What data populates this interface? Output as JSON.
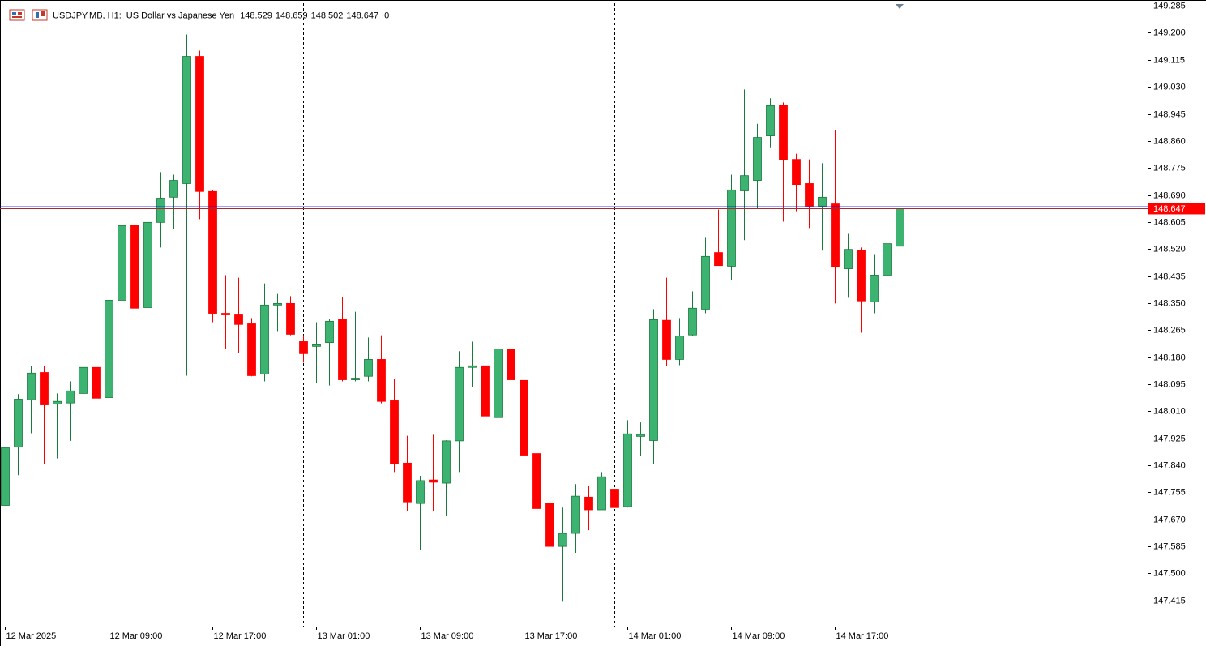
{
  "chart_data": {
    "type": "candlestick",
    "symbol": "USDJPY.MB, H1:",
    "description": "US Dollar vs Japanese Yen",
    "spread": 0,
    "categories": [
      "12 Mar 2025",
      null,
      null,
      null,
      null,
      null,
      null,
      null,
      "12 Mar 09:00",
      null,
      null,
      null,
      null,
      null,
      null,
      null,
      "12 Mar 17:00",
      null,
      null,
      null,
      null,
      null,
      null,
      null,
      "13 Mar 01:00",
      null,
      null,
      null,
      null,
      null,
      null,
      null,
      "13 Mar 09:00",
      null,
      null,
      null,
      null,
      null,
      null,
      null,
      "13 Mar 17:00",
      null,
      null,
      null,
      null,
      null,
      null,
      null,
      "14 Mar 01:00",
      null,
      null,
      null,
      null,
      null,
      null,
      null,
      "14 Mar 09:00",
      null,
      null,
      null,
      null,
      null,
      null,
      null,
      "14 Mar 17:00",
      null,
      null,
      null,
      null,
      null
    ],
    "open": [
      147.714,
      147.898,
      148.046,
      148.132,
      148.033,
      148.036,
      148.066,
      148.148,
      148.053,
      148.359,
      148.594,
      148.336,
      148.604,
      148.683,
      148.726,
      149.126,
      148.701,
      148.318,
      148.313,
      148.285,
      148.127,
      148.344,
      148.349,
      148.229,
      148.214,
      148.226,
      148.298,
      148.109,
      148.12,
      148.173,
      148.043,
      147.847,
      147.72,
      147.794,
      147.784,
      147.917,
      148.148,
      148.153,
      147.99,
      148.206,
      148.107,
      147.877,
      147.72,
      147.585,
      147.626,
      147.74,
      147.7,
      147.765,
      147.71,
      147.931,
      147.918,
      148.296,
      148.173,
      148.25,
      148.331,
      148.509,
      148.466,
      148.703,
      148.736,
      148.876,
      148.971,
      148.802,
      148.726,
      148.655,
      148.662,
      148.458,
      148.517,
      148.354,
      148.438,
      148.529
    ],
    "high": [
      147.895,
      148.064,
      148.153,
      148.153,
      148.066,
      148.104,
      148.27,
      148.288,
      148.412,
      148.599,
      148.644,
      148.65,
      148.762,
      148.754,
      149.195,
      149.144,
      148.706,
      148.438,
      148.43,
      148.303,
      148.412,
      148.379,
      148.372,
      148.249,
      148.29,
      148.3,
      148.369,
      148.323,
      148.242,
      148.249,
      148.112,
      147.933,
      147.807,
      147.936,
      147.919,
      148.199,
      148.229,
      148.181,
      148.257,
      148.351,
      148.114,
      147.908,
      147.832,
      147.707,
      147.781,
      147.776,
      147.819,
      147.765,
      147.982,
      147.975,
      148.331,
      148.43,
      148.303,
      148.387,
      148.555,
      148.644,
      148.754,
      149.022,
      148.914,
      148.994,
      148.981,
      148.82,
      148.802,
      148.79,
      148.894,
      148.568,
      148.525,
      148.504,
      148.583,
      148.659
    ],
    "low": [
      147.714,
      147.809,
      147.941,
      147.844,
      147.862,
      147.917,
      148.053,
      148.028,
      147.959,
      148.275,
      148.257,
      148.334,
      148.525,
      148.583,
      148.122,
      148.614,
      148.29,
      148.206,
      148.193,
      148.12,
      148.104,
      148.262,
      148.249,
      148.163,
      148.099,
      148.091,
      148.104,
      148.104,
      148.104,
      148.035,
      147.819,
      147.695,
      147.575,
      147.697,
      147.68,
      147.819,
      148.086,
      147.904,
      147.692,
      148.104,
      147.839,
      147.641,
      147.529,
      147.411,
      147.565,
      147.636,
      147.702,
      147.707,
      147.707,
      147.87,
      147.844,
      148.153,
      148.155,
      148.247,
      148.318,
      148.468,
      148.423,
      148.548,
      148.647,
      148.84,
      148.606,
      148.639,
      148.586,
      148.515,
      148.349,
      148.367,
      148.257,
      148.318,
      148.435,
      148.502
    ],
    "close": [
      147.895,
      148.048,
      148.13,
      148.03,
      148.041,
      148.074,
      148.148,
      148.051,
      148.359,
      148.594,
      148.334,
      148.604,
      148.68,
      148.736,
      149.126,
      148.701,
      148.318,
      148.313,
      148.283,
      148.122,
      148.344,
      148.349,
      148.252,
      148.191,
      148.219,
      148.293,
      148.109,
      148.114,
      148.173,
      148.041,
      147.844,
      147.725,
      147.792,
      147.787,
      147.917,
      148.148,
      148.153,
      147.995,
      148.206,
      148.109,
      147.872,
      147.704,
      147.585,
      147.626,
      147.743,
      147.7,
      147.804,
      147.707,
      147.939,
      147.937,
      148.298,
      148.173,
      148.247,
      148.334,
      148.497,
      148.468,
      148.706,
      148.751,
      148.871,
      148.971,
      148.8,
      148.723,
      148.655,
      148.683,
      148.463,
      148.519,
      148.357,
      148.438,
      148.537,
      148.647
    ],
    "up_color": "#3cb371",
    "down_color": "#ff0000",
    "ask": 148.653,
    "ask_color": "#0000ff",
    "bid_color": "#a52a2a",
    "ylim": [
      147.333,
      149.293
    ],
    "yticks": [
      149.285,
      {
        "value": 149.2,
        "label": "149.200"
      },
      149.115,
      {
        "value": 149.03,
        "label": "149.030"
      },
      148.945,
      {
        "value": 148.86,
        "label": "148.860"
      },
      148.775,
      {
        "value": 148.69,
        "label": "148.690"
      },
      148.605,
      {
        "value": 148.52,
        "label": "148.520"
      },
      148.435,
      {
        "value": 148.35,
        "label": "148.350"
      },
      148.265,
      {
        "value": 148.18,
        "label": "148.180"
      },
      148.095,
      {
        "value": 148.01,
        "label": "148.010"
      },
      147.925,
      {
        "value": 147.84,
        "label": "147.840"
      },
      147.755,
      {
        "value": 147.67,
        "label": "147.670"
      },
      147.585,
      {
        "value": 147.5,
        "label": "147.500"
      },
      147.415
    ]
  }
}
